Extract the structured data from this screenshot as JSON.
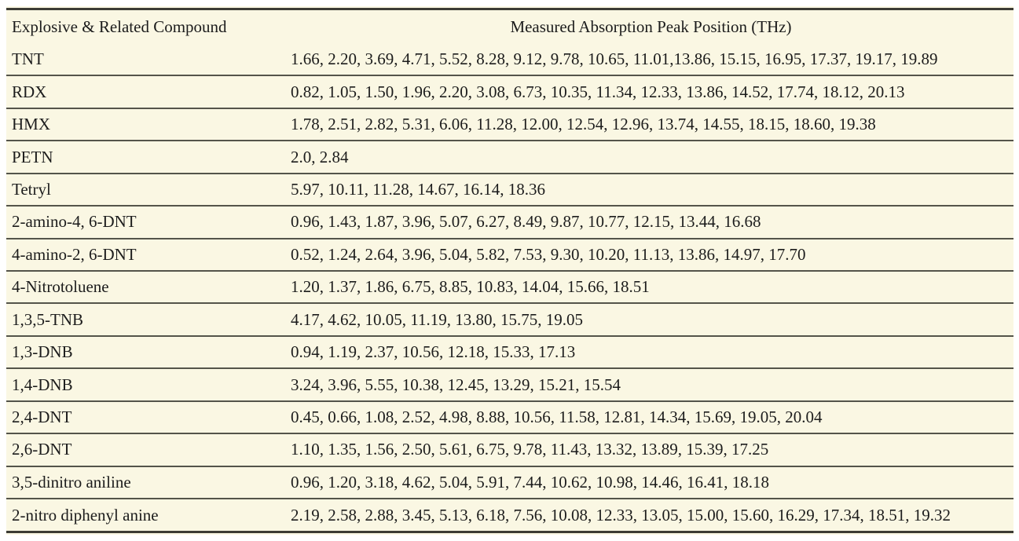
{
  "table": {
    "columns": [
      {
        "label": "Explosive & Related Compound"
      },
      {
        "label": "Measured Absorption Peak Position (THz)"
      }
    ],
    "rows": [
      {
        "compound": "TNT",
        "peaks": "1.66, 2.20, 3.69, 4.71, 5.52, 8.28, 9.12, 9.78, 10.65, 11.01,13.86, 15.15, 16.95, 17.37, 19.17, 19.89"
      },
      {
        "compound": "RDX",
        "peaks": "0.82, 1.05, 1.50, 1.96, 2.20, 3.08, 6.73, 10.35, 11.34, 12.33, 13.86, 14.52, 17.74, 18.12, 20.13"
      },
      {
        "compound": "HMX",
        "peaks": "1.78, 2.51, 2.82, 5.31, 6.06, 11.28, 12.00, 12.54, 12.96, 13.74, 14.55, 18.15, 18.60, 19.38"
      },
      {
        "compound": "PETN",
        "peaks": "2.0, 2.84"
      },
      {
        "compound": "Tetryl",
        "peaks": "5.97, 10.11, 11.28, 14.67, 16.14, 18.36"
      },
      {
        "compound": "2-amino-4, 6-DNT",
        "peaks": "0.96, 1.43, 1.87, 3.96, 5.07, 6.27, 8.49, 9.87, 10.77, 12.15, 13.44, 16.68"
      },
      {
        "compound": "4-amino-2, 6-DNT",
        "peaks": "0.52, 1.24, 2.64, 3.96, 5.04, 5.82, 7.53, 9.30, 10.20, 11.13, 13.86, 14.97, 17.70"
      },
      {
        "compound": "4-Nitrotoluene",
        "peaks": "1.20, 1.37, 1.86, 6.75, 8.85, 10.83, 14.04, 15.66, 18.51"
      },
      {
        "compound": "1,3,5-TNB",
        "peaks": "4.17, 4.62, 10.05, 11.19, 13.80, 15.75, 19.05"
      },
      {
        "compound": "1,3-DNB",
        "peaks": "0.94, 1.19, 2.37, 10.56, 12.18, 15.33, 17.13"
      },
      {
        "compound": "1,4-DNB",
        "peaks": "3.24, 3.96, 5.55, 10.38, 12.45, 13.29, 15.21, 15.54"
      },
      {
        "compound": "2,4-DNT",
        "peaks": "0.45, 0.66, 1.08, 2.52, 4.98, 8.88, 10.56, 11.58, 12.81, 14.34, 15.69, 19.05, 20.04"
      },
      {
        "compound": "2,6-DNT",
        "peaks": "1.10, 1.35, 1.56, 2.50, 5.61, 6.75, 9.78, 11.43, 13.32, 13.89, 15.39, 17.25"
      },
      {
        "compound": "3,5-dinitro aniline",
        "peaks": "0.96, 1.20, 3.18, 4.62, 5.04, 5.91, 7.44, 10.62, 10.98, 14.46, 16.41, 18.18"
      },
      {
        "compound": "2-nitro diphenyl anine",
        "peaks": "2.19, 2.58, 2.88, 3.45, 5.13, 6.18, 7.56, 10.08, 12.33, 13.05, 15.00, 15.60, 16.29, 17.34, 18.51, 19.32"
      }
    ]
  },
  "colors": {
    "panel_background": "#faf7e3",
    "text": "#1c1c1c",
    "thick_rule": "#3c3c34",
    "row_rule": "#54544a"
  }
}
